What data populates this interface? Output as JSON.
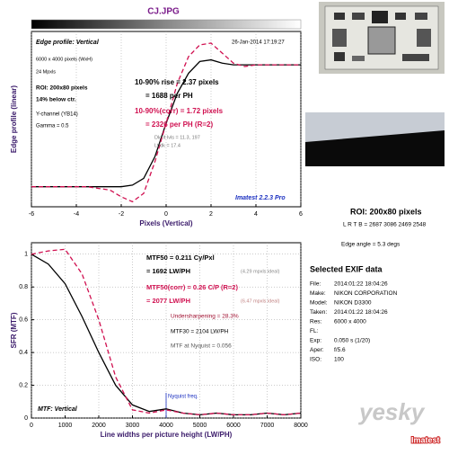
{
  "title": "CJ.JPG",
  "roi_info": {
    "title": "ROI: 200x80 pixels",
    "coords": "L R T B = 2687 3086 2469 2548",
    "edge_angle": "Edge angle = 5.3 degs"
  },
  "exif": {
    "title": "Selected EXIF data",
    "rows": [
      [
        "File:",
        "2014:01:22 18:04:26"
      ],
      [
        "Make:",
        "NIKON CORPORATION"
      ],
      [
        "Model:",
        "NIKON D3300"
      ],
      [
        "Taken:",
        "2014:01:22 18:04:26"
      ],
      [
        "Res:",
        "6000 x 4000"
      ],
      [
        "FL:",
        ""
      ],
      [
        "Exp:",
        "0.050 s  (1/20)"
      ],
      [
        "Aper:",
        "f/5.6"
      ],
      [
        "ISO:",
        "100"
      ]
    ]
  },
  "watermark": {
    "site": "yesky",
    "brand": "Imatest"
  },
  "chart_data": [
    {
      "type": "line",
      "ylabel": "Edge profile (linear)",
      "xlabel": "Pixels (Vertical)",
      "xlim": [
        -6,
        6
      ],
      "xticks": [
        -6,
        -4,
        -2,
        0,
        2,
        4,
        6
      ],
      "ylim": [
        0,
        1.05
      ],
      "grid": true,
      "x": [
        -6,
        -5.5,
        -5,
        -4.5,
        -4,
        -3.5,
        -3,
        -2.5,
        -2,
        -1.5,
        -1,
        -0.5,
        0,
        0.5,
        1,
        1.5,
        2,
        2.5,
        3,
        3.5,
        4,
        4.5,
        5,
        5.5,
        6
      ],
      "series": [
        {
          "color": "#000000",
          "dash": "solid",
          "values": [
            0.12,
            0.12,
            0.12,
            0.12,
            0.12,
            0.12,
            0.12,
            0.12,
            0.12,
            0.13,
            0.17,
            0.3,
            0.5,
            0.68,
            0.8,
            0.87,
            0.88,
            0.86,
            0.85,
            0.85,
            0.85,
            0.85,
            0.85,
            0.85,
            0.85
          ]
        },
        {
          "color": "#d01050",
          "dash": "dashed",
          "values": [
            0.12,
            0.12,
            0.12,
            0.12,
            0.12,
            0.12,
            0.11,
            0.1,
            0.06,
            0.03,
            0.08,
            0.27,
            0.5,
            0.74,
            0.9,
            0.97,
            0.98,
            0.92,
            0.86,
            0.84,
            0.85,
            0.85,
            0.85,
            0.85,
            0.85
          ]
        }
      ],
      "annotations": [
        {
          "text": "Edge profile: Vertical",
          "color": "#000000"
        },
        {
          "text": "26-Jan-2014 17:19:27",
          "color": "#000000"
        },
        {
          "text": "6000 x 4000 pixels (WxH)",
          "color": "#000000"
        },
        {
          "text": "24 Mpxls",
          "color": "#000000"
        },
        {
          "text": "ROI: 200x80 pixels",
          "color": "#000000"
        },
        {
          "text": "14% below ctr.",
          "color": "#000000"
        },
        {
          "text": "Y-channel  (YB14)",
          "color": "#000000"
        },
        {
          "text": "Gamma = 0.5",
          "color": "#000000"
        },
        {
          "text": "10-90% rise = 2.37 pixels",
          "color": "#000000"
        },
        {
          "text": "= 1688 per PH",
          "color": "#000000"
        },
        {
          "text": "10-90%(corr) = 1.72 pixels",
          "color": "#d01050"
        },
        {
          "text": "= 2326 per PH  (R=2)",
          "color": "#d01050"
        },
        {
          "text": "Dk, lt lvls = 11.3, 197",
          "color": "#777777"
        },
        {
          "text": "Lt/dk = 17.4",
          "color": "#777777"
        },
        {
          "text": "Imatest 2.2.3 Pro",
          "color": "#1a2fc0"
        }
      ]
    },
    {
      "type": "line",
      "ylabel": "SFR (MTF)",
      "xlabel": "Line widths per picture height (LW/PH)",
      "xlim": [
        0,
        8000
      ],
      "xticks": [
        0,
        1000,
        2000,
        3000,
        4000,
        5000,
        6000,
        7000,
        8000
      ],
      "ylim": [
        0,
        1.07
      ],
      "yticks": [
        0,
        0.2,
        0.4,
        0.6,
        0.8,
        1
      ],
      "grid": true,
      "x": [
        0,
        500,
        1000,
        1500,
        2000,
        2500,
        3000,
        3500,
        4000,
        4500,
        5000,
        5500,
        6000,
        6500,
        7000,
        7500,
        8000
      ],
      "series": [
        {
          "color": "#000000",
          "dash": "solid",
          "values": [
            1,
            0.94,
            0.82,
            0.62,
            0.4,
            0.2,
            0.08,
            0.04,
            0.056,
            0.03,
            0.02,
            0.03,
            0.02,
            0.02,
            0.03,
            0.02,
            0.03
          ]
        },
        {
          "color": "#d01050",
          "dash": "dashed",
          "values": [
            1,
            1.02,
            1.03,
            0.88,
            0.6,
            0.25,
            0.05,
            0.03,
            0.05,
            0.03,
            0.02,
            0.03,
            0.02,
            0.02,
            0.03,
            0.02,
            0.03
          ]
        }
      ],
      "nyquist": {
        "x": 4000,
        "label": "Nyquist freq.",
        "color": "#1a2fc0"
      },
      "annotations": [
        {
          "text": "MTF50 = 0.211 Cy/Pxl",
          "color": "#000000"
        },
        {
          "text": "= 1692 LW/PH",
          "color": "#000000"
        },
        {
          "text": "(4.29 mpxls ideal)",
          "color": "#888888"
        },
        {
          "text": "MTF50(corr) = 0.26 C/P  (R=2)",
          "color": "#d01050"
        },
        {
          "text": "= 2077 LW/PH",
          "color": "#d01050"
        },
        {
          "text": "(6.47 mpxls ideal)",
          "color": "#c08080"
        },
        {
          "text": "Undersharpening = 28.3%",
          "color": "#a01030"
        },
        {
          "text": "MTF30 = 2104 LW/PH",
          "color": "#000000"
        },
        {
          "text": "MTF at Nyquist = 0.056",
          "color": "#555555"
        },
        {
          "text": "MTF: Vertical",
          "color": "#000000"
        }
      ]
    }
  ]
}
